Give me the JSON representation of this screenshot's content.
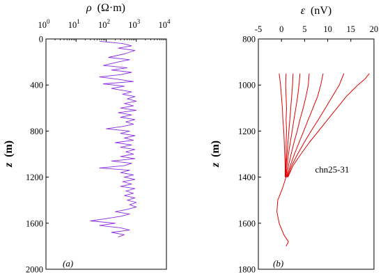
{
  "chart_data": [
    {
      "type": "line",
      "panel_label": "(a)",
      "xlabel_symbol": "ρ",
      "xlabel_unit": "(Ω·m)",
      "ylabel_symbol": "z",
      "ylabel_unit": "(m)",
      "x_scale": "log",
      "x_axis_position": "top",
      "xlim": [
        1,
        10000
      ],
      "x_ticks": [
        1,
        10,
        100,
        1000,
        10000
      ],
      "x_tick_labels": [
        {
          "base": "10",
          "exp": "0"
        },
        {
          "base": "10",
          "exp": "1"
        },
        {
          "base": "10",
          "exp": "2"
        },
        {
          "base": "10",
          "exp": "3"
        },
        {
          "base": "10",
          "exp": "4"
        }
      ],
      "ylim": [
        0,
        2000
      ],
      "y_inverted": true,
      "y_ticks": [
        "0",
        "400",
        "800",
        "1200",
        "1600",
        "2000"
      ],
      "series": [
        {
          "color": "#8a2be2",
          "points": [
            [
              60,
              20
            ],
            [
              350,
              40
            ],
            [
              700,
              60
            ],
            [
              250,
              80
            ],
            [
              900,
              100
            ],
            [
              400,
              130
            ],
            [
              120,
              160
            ],
            [
              600,
              180
            ],
            [
              250,
              200
            ],
            [
              80,
              230
            ],
            [
              500,
              250
            ],
            [
              150,
              270
            ],
            [
              700,
              290
            ],
            [
              300,
              310
            ],
            [
              60,
              330
            ],
            [
              250,
              350
            ],
            [
              800,
              370
            ],
            [
              80,
              390
            ],
            [
              400,
              410
            ],
            [
              150,
              430
            ],
            [
              700,
              460
            ],
            [
              350,
              480
            ],
            [
              900,
              500
            ],
            [
              500,
              520
            ],
            [
              1000,
              540
            ],
            [
              400,
              560
            ],
            [
              800,
              580
            ],
            [
              300,
              600
            ],
            [
              1000,
              620
            ],
            [
              250,
              640
            ],
            [
              700,
              660
            ],
            [
              300,
              680
            ],
            [
              900,
              700
            ],
            [
              450,
              720
            ],
            [
              800,
              740
            ],
            [
              350,
              760
            ],
            [
              100,
              780
            ],
            [
              600,
              800
            ],
            [
              300,
              820
            ],
            [
              900,
              840
            ],
            [
              400,
              860
            ],
            [
              800,
              880
            ],
            [
              200,
              900
            ],
            [
              700,
              920
            ],
            [
              300,
              940
            ],
            [
              900,
              960
            ],
            [
              450,
              980
            ],
            [
              800,
              1000
            ],
            [
              300,
              1020
            ],
            [
              900,
              1040
            ],
            [
              150,
              1060
            ],
            [
              700,
              1080
            ],
            [
              400,
              1100
            ],
            [
              60,
              1120
            ],
            [
              600,
              1140
            ],
            [
              300,
              1160
            ],
            [
              800,
              1180
            ],
            [
              400,
              1200
            ],
            [
              900,
              1220
            ],
            [
              350,
              1240
            ],
            [
              700,
              1260
            ],
            [
              300,
              1280
            ],
            [
              900,
              1300
            ],
            [
              450,
              1320
            ],
            [
              800,
              1340
            ],
            [
              400,
              1360
            ],
            [
              900,
              1380
            ],
            [
              500,
              1400
            ],
            [
              1000,
              1420
            ],
            [
              600,
              1440
            ],
            [
              1000,
              1460
            ],
            [
              500,
              1480
            ],
            [
              200,
              1500
            ],
            [
              600,
              1520
            ],
            [
              300,
              1540
            ],
            [
              100,
              1560
            ],
            [
              30,
              1580
            ],
            [
              200,
              1600
            ],
            [
              60,
              1620
            ],
            [
              300,
              1640
            ],
            [
              600,
              1660
            ],
            [
              150,
              1680
            ],
            [
              400,
              1700
            ],
            [
              250,
              1720
            ]
          ]
        }
      ]
    },
    {
      "type": "line",
      "panel_label": "(b)",
      "annotation": "chn25-31",
      "xlabel_symbol": "ε",
      "xlabel_unit": "(nV)",
      "ylabel_symbol": "z",
      "ylabel_unit": "(m)",
      "x_axis_position": "top",
      "xlim": [
        -5,
        20
      ],
      "x_ticks": [
        "-5",
        "0",
        "5",
        "10",
        "15",
        "20"
      ],
      "ylim": [
        800,
        1800
      ],
      "y_inverted": true,
      "y_ticks": [
        "800",
        "1000",
        "1200",
        "1400",
        "1600",
        "1800"
      ],
      "series": [
        {
          "color": "#e00000",
          "points": [
            [
              -0.5,
              950
            ],
            [
              -0.2,
              1000
            ],
            [
              0.0,
              1050
            ],
            [
              0.2,
              1100
            ],
            [
              0.3,
              1150
            ],
            [
              0.5,
              1200
            ],
            [
              0.6,
              1250
            ],
            [
              0.7,
              1300
            ],
            [
              0.8,
              1350
            ],
            [
              0.8,
              1400
            ]
          ]
        },
        {
          "color": "#e00000",
          "points": [
            [
              1.0,
              950
            ],
            [
              0.9,
              1000
            ],
            [
              1.0,
              1050
            ],
            [
              1.1,
              1100
            ],
            [
              1.0,
              1150
            ],
            [
              1.1,
              1200
            ],
            [
              1.0,
              1250
            ],
            [
              1.0,
              1300
            ],
            [
              0.9,
              1350
            ],
            [
              0.9,
              1400
            ]
          ]
        },
        {
          "color": "#e00000",
          "points": [
            [
              2.5,
              950
            ],
            [
              2.4,
              1000
            ],
            [
              2.2,
              1050
            ],
            [
              2.0,
              1100
            ],
            [
              1.8,
              1150
            ],
            [
              1.6,
              1200
            ],
            [
              1.4,
              1250
            ],
            [
              1.2,
              1300
            ],
            [
              1.0,
              1350
            ],
            [
              0.9,
              1400
            ]
          ]
        },
        {
          "color": "#e00000",
          "points": [
            [
              4.0,
              950
            ],
            [
              3.8,
              1000
            ],
            [
              3.5,
              1050
            ],
            [
              3.1,
              1100
            ],
            [
              2.7,
              1150
            ],
            [
              2.3,
              1200
            ],
            [
              1.9,
              1250
            ],
            [
              1.5,
              1300
            ],
            [
              1.2,
              1350
            ],
            [
              1.0,
              1400
            ]
          ]
        },
        {
          "color": "#e00000",
          "points": [
            [
              6.0,
              950
            ],
            [
              5.8,
              1000
            ],
            [
              5.3,
              1050
            ],
            [
              4.7,
              1100
            ],
            [
              4.0,
              1150
            ],
            [
              3.4,
              1200
            ],
            [
              2.7,
              1250
            ],
            [
              2.1,
              1300
            ],
            [
              1.5,
              1350
            ],
            [
              1.1,
              1400
            ]
          ]
        },
        {
          "color": "#e00000",
          "points": [
            [
              9.0,
              950
            ],
            [
              8.5,
              1000
            ],
            [
              7.8,
              1050
            ],
            [
              6.8,
              1100
            ],
            [
              5.8,
              1150
            ],
            [
              4.8,
              1200
            ],
            [
              3.8,
              1250
            ],
            [
              2.8,
              1300
            ],
            [
              1.9,
              1350
            ],
            [
              1.2,
              1400
            ]
          ]
        },
        {
          "color": "#e00000",
          "points": [
            [
              13.5,
              950
            ],
            [
              12.5,
              1000
            ],
            [
              11.0,
              1050
            ],
            [
              9.5,
              1100
            ],
            [
              8.0,
              1150
            ],
            [
              6.4,
              1200
            ],
            [
              4.9,
              1250
            ],
            [
              3.5,
              1300
            ],
            [
              2.2,
              1350
            ],
            [
              1.3,
              1400
            ]
          ]
        },
        {
          "color": "#e00000",
          "points": [
            [
              19.0,
              950
            ],
            [
              18.0,
              975
            ],
            [
              16.5,
              1000
            ],
            [
              14.0,
              1050
            ],
            [
              12.0,
              1100
            ],
            [
              10.0,
              1150
            ],
            [
              8.0,
              1200
            ],
            [
              6.0,
              1250
            ],
            [
              4.2,
              1300
            ],
            [
              2.5,
              1350
            ],
            [
              1.4,
              1400
            ]
          ]
        },
        {
          "color": "#e00000",
          "points": [
            [
              1.0,
              1400
            ],
            [
              0.2,
              1450
            ],
            [
              -0.8,
              1500
            ],
            [
              -1.0,
              1550
            ],
            [
              -0.5,
              1600
            ],
            [
              0.5,
              1650
            ],
            [
              1.5,
              1680
            ],
            [
              1.0,
              1700
            ]
          ]
        }
      ]
    }
  ]
}
